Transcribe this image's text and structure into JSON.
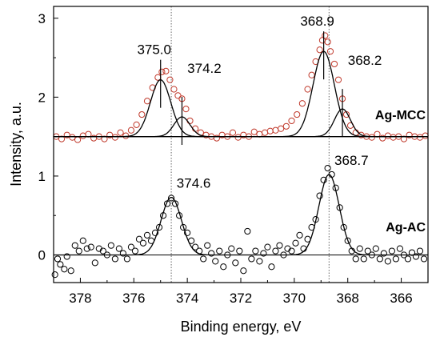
{
  "chart_data": {
    "type": "scatter",
    "title": "",
    "xlabel": "Binding energy, eV",
    "ylabel": "Intensity, a.u.",
    "xlim": [
      379,
      365
    ],
    "ylim": [
      -0.35,
      3.15
    ],
    "x_reversed": true,
    "x_ticks": [
      378,
      376,
      374,
      372,
      370,
      368,
      366
    ],
    "y_ticks": [
      0,
      1,
      2,
      3
    ],
    "grid": false,
    "legend": "none",
    "reference_lines_x": [
      374.6,
      368.7
    ],
    "zero_line_y": 0,
    "colors": {
      "mcc_points": "#c0392b",
      "ac_points": "#000000",
      "fit": "#000000",
      "ref_line": "#666666"
    },
    "series": [
      {
        "name": "Ag-MCC",
        "baseline": 1.5,
        "peaks": [
          {
            "label": "375.0",
            "x": 375.0,
            "height": 0.72,
            "sigma": 0.38
          },
          {
            "label": "374.2",
            "x": 374.2,
            "height": 0.25,
            "sigma": 0.3
          },
          {
            "label": "368.9",
            "x": 368.9,
            "height": 1.08,
            "sigma": 0.4
          },
          {
            "label": "368.2",
            "x": 368.2,
            "height": 0.35,
            "sigma": 0.3
          }
        ],
        "points": [
          [
            378.9,
            1.5
          ],
          [
            378.7,
            1.47
          ],
          [
            378.5,
            1.52
          ],
          [
            378.3,
            1.49
          ],
          [
            378.1,
            1.46
          ],
          [
            377.9,
            1.51
          ],
          [
            377.7,
            1.53
          ],
          [
            377.5,
            1.48
          ],
          [
            377.3,
            1.5
          ],
          [
            377.1,
            1.47
          ],
          [
            376.9,
            1.52
          ],
          [
            376.7,
            1.49
          ],
          [
            376.5,
            1.55
          ],
          [
            376.3,
            1.51
          ],
          [
            376.1,
            1.58
          ],
          [
            375.9,
            1.65
          ],
          [
            375.7,
            1.78
          ],
          [
            375.5,
            1.95
          ],
          [
            375.3,
            2.12
          ],
          [
            375.1,
            2.25
          ],
          [
            374.95,
            2.32
          ],
          [
            374.8,
            2.33
          ],
          [
            374.65,
            2.22
          ],
          [
            374.5,
            2.1
          ],
          [
            374.35,
            2.02
          ],
          [
            374.2,
            1.98
          ],
          [
            374.05,
            1.85
          ],
          [
            373.9,
            1.7
          ],
          [
            373.7,
            1.6
          ],
          [
            373.5,
            1.55
          ],
          [
            373.3,
            1.52
          ],
          [
            373.1,
            1.5
          ],
          [
            372.9,
            1.48
          ],
          [
            372.7,
            1.52
          ],
          [
            372.5,
            1.5
          ],
          [
            372.3,
            1.55
          ],
          [
            372.1,
            1.49
          ],
          [
            371.9,
            1.52
          ],
          [
            371.7,
            1.5
          ],
          [
            371.5,
            1.56
          ],
          [
            371.3,
            1.53
          ],
          [
            371.1,
            1.55
          ],
          [
            370.9,
            1.57
          ],
          [
            370.7,
            1.58
          ],
          [
            370.5,
            1.6
          ],
          [
            370.3,
            1.63
          ],
          [
            370.1,
            1.7
          ],
          [
            369.9,
            1.78
          ],
          [
            369.7,
            1.92
          ],
          [
            369.5,
            2.1
          ],
          [
            369.35,
            2.28
          ],
          [
            369.2,
            2.45
          ],
          [
            369.05,
            2.6
          ],
          [
            368.95,
            2.72
          ],
          [
            368.85,
            2.78
          ],
          [
            368.75,
            2.7
          ],
          [
            368.65,
            2.58
          ],
          [
            368.5,
            2.42
          ],
          [
            368.35,
            2.22
          ],
          [
            368.2,
            1.98
          ],
          [
            368.05,
            1.78
          ],
          [
            367.9,
            1.64
          ],
          [
            367.7,
            1.55
          ],
          [
            367.5,
            1.52
          ],
          [
            367.3,
            1.5
          ],
          [
            367.1,
            1.49
          ],
          [
            366.9,
            1.53
          ],
          [
            366.7,
            1.48
          ],
          [
            366.5,
            1.51
          ],
          [
            366.3,
            1.49
          ],
          [
            366.1,
            1.5
          ],
          [
            365.9,
            1.47
          ],
          [
            365.7,
            1.52
          ],
          [
            365.5,
            1.5
          ],
          [
            365.3,
            1.49
          ],
          [
            365.1,
            1.51
          ]
        ]
      },
      {
        "name": "Ag-AC",
        "baseline": 0.0,
        "peaks": [
          {
            "label": "374.6",
            "x": 374.6,
            "height": 0.73,
            "sigma": 0.38
          },
          {
            "label": "368.7",
            "x": 368.7,
            "height": 1.02,
            "sigma": 0.38
          }
        ],
        "points": [
          [
            378.95,
            -0.25
          ],
          [
            378.85,
            -0.05
          ],
          [
            378.75,
            -0.12
          ],
          [
            378.6,
            -0.18
          ],
          [
            378.5,
            -0.02
          ],
          [
            378.35,
            -0.2
          ],
          [
            378.2,
            0.12
          ],
          [
            378.05,
            0.05
          ],
          [
            377.9,
            0.18
          ],
          [
            377.75,
            0.08
          ],
          [
            377.6,
            0.1
          ],
          [
            377.45,
            -0.1
          ],
          [
            377.3,
            0.08
          ],
          [
            377.15,
            0.05
          ],
          [
            377.0,
            0.0
          ],
          [
            376.85,
            0.12
          ],
          [
            376.7,
            -0.05
          ],
          [
            376.55,
            0.08
          ],
          [
            376.4,
            0.02
          ],
          [
            376.25,
            -0.05
          ],
          [
            376.1,
            0.1
          ],
          [
            375.95,
            0.05
          ],
          [
            375.8,
            0.2
          ],
          [
            375.65,
            0.15
          ],
          [
            375.5,
            0.25
          ],
          [
            375.35,
            0.18
          ],
          [
            375.2,
            0.28
          ],
          [
            375.05,
            0.35
          ],
          [
            374.9,
            0.5
          ],
          [
            374.75,
            0.65
          ],
          [
            374.6,
            0.72
          ],
          [
            374.45,
            0.65
          ],
          [
            374.3,
            0.5
          ],
          [
            374.15,
            0.35
          ],
          [
            374.0,
            0.28
          ],
          [
            373.85,
            0.18
          ],
          [
            373.7,
            0.1
          ],
          [
            373.55,
            0.05
          ],
          [
            373.4,
            -0.05
          ],
          [
            373.25,
            0.12
          ],
          [
            373.1,
            0.02
          ],
          [
            372.95,
            -0.08
          ],
          [
            372.8,
            0.05
          ],
          [
            372.65,
            -0.15
          ],
          [
            372.5,
            0.0
          ],
          [
            372.35,
            0.08
          ],
          [
            372.2,
            -0.1
          ],
          [
            372.05,
            0.05
          ],
          [
            371.9,
            -0.2
          ],
          [
            371.75,
            0.3
          ],
          [
            371.6,
            -0.05
          ],
          [
            371.45,
            0.05
          ],
          [
            371.3,
            -0.08
          ],
          [
            371.15,
            0.02
          ],
          [
            371.0,
            0.1
          ],
          [
            370.85,
            -0.15
          ],
          [
            370.7,
            0.05
          ],
          [
            370.55,
            0.12
          ],
          [
            370.4,
            0.0
          ],
          [
            370.25,
            0.08
          ],
          [
            370.1,
            0.05
          ],
          [
            369.95,
            0.15
          ],
          [
            369.8,
            0.25
          ],
          [
            369.65,
            0.08
          ],
          [
            369.5,
            0.2
          ],
          [
            369.35,
            0.35
          ],
          [
            369.2,
            0.45
          ],
          [
            369.05,
            0.75
          ],
          [
            368.9,
            0.95
          ],
          [
            368.75,
            1.1
          ],
          [
            368.6,
            1.02
          ],
          [
            368.45,
            0.85
          ],
          [
            368.3,
            0.6
          ],
          [
            368.15,
            0.35
          ],
          [
            368.0,
            0.18
          ],
          [
            367.85,
            0.05
          ],
          [
            367.7,
            -0.05
          ],
          [
            367.55,
            0.08
          ],
          [
            367.4,
            -0.05
          ],
          [
            367.25,
            0.05
          ],
          [
            367.1,
            0.0
          ],
          [
            366.95,
            0.08
          ],
          [
            366.8,
            -0.05
          ],
          [
            366.65,
            0.02
          ],
          [
            366.5,
            -0.08
          ],
          [
            366.35,
            0.05
          ],
          [
            366.2,
            -0.05
          ],
          [
            366.05,
            0.08
          ],
          [
            365.9,
            0.0
          ],
          [
            365.75,
            -0.05
          ],
          [
            365.6,
            0.03
          ],
          [
            365.45,
            -0.02
          ],
          [
            365.3,
            0.05
          ],
          [
            365.15,
            -0.05
          ]
        ]
      }
    ]
  }
}
